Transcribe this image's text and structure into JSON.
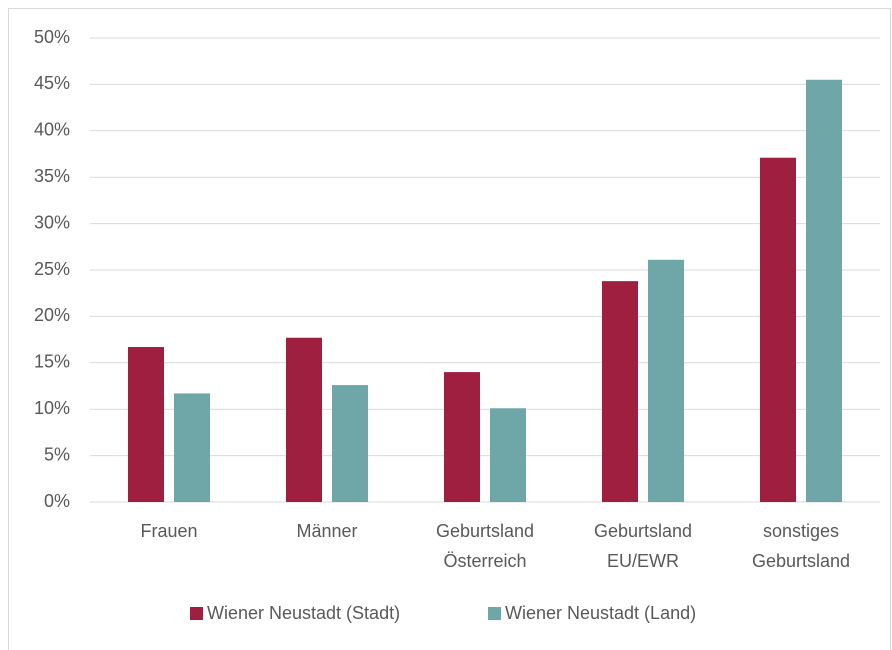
{
  "chart_data": {
    "type": "bar",
    "categories": [
      [
        "Frauen"
      ],
      [
        "Männer"
      ],
      [
        "Geburtsland",
        "Österreich"
      ],
      [
        "Geburtsland",
        "EU/EWR"
      ],
      [
        "sonstiges",
        "Geburtsland"
      ]
    ],
    "series": [
      {
        "name": "Wiener Neustadt (Stadt)",
        "color": "#9e1f40",
        "values": [
          16.7,
          17.7,
          14.0,
          23.8,
          37.1
        ]
      },
      {
        "name": "Wiener Neustadt (Land)",
        "color": "#6fa6a8",
        "values": [
          11.7,
          12.6,
          10.1,
          26.1,
          45.5
        ]
      }
    ],
    "ylim": [
      0,
      50
    ],
    "yticks": [
      {
        "value": 0,
        "label": "0%"
      },
      {
        "value": 5,
        "label": "5%"
      },
      {
        "value": 10,
        "label": "10%"
      },
      {
        "value": 15,
        "label": "15%"
      },
      {
        "value": 20,
        "label": "20%"
      },
      {
        "value": 25,
        "label": "25%"
      },
      {
        "value": 30,
        "label": "30%"
      },
      {
        "value": 35,
        "label": "35%"
      },
      {
        "value": 40,
        "label": "40%"
      },
      {
        "value": 45,
        "label": "45%"
      },
      {
        "value": 50,
        "label": "50%"
      }
    ],
    "grid": true,
    "legend": "bottom"
  }
}
